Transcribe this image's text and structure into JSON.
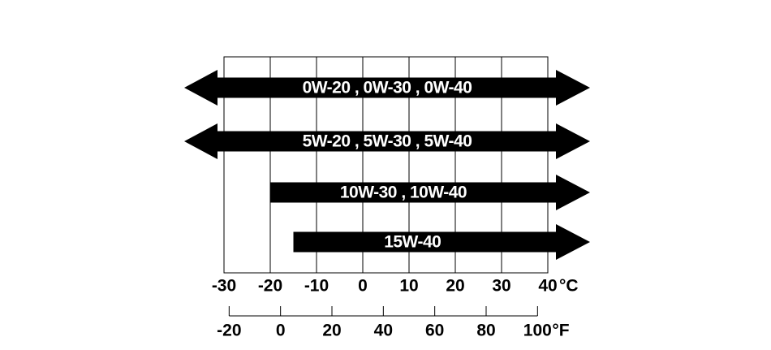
{
  "diagram": {
    "celsius_ticks": [
      -30,
      -20,
      -10,
      0,
      10,
      20,
      30,
      40
    ],
    "celsius_unit": "°C",
    "fahrenheit_ticks": [
      -20,
      0,
      20,
      40,
      60,
      80,
      100
    ],
    "fahrenheit_unit": "°F",
    "grades": [
      {
        "label": "0W-20 , 0W-30 , 0W-40",
        "start": null
      },
      {
        "label": "5W-20 , 5W-30 , 5W-40",
        "start": null
      },
      {
        "label": "10W-30 , 10W-40",
        "start": -20
      },
      {
        "label": "15W-40",
        "start": -15
      }
    ]
  }
}
